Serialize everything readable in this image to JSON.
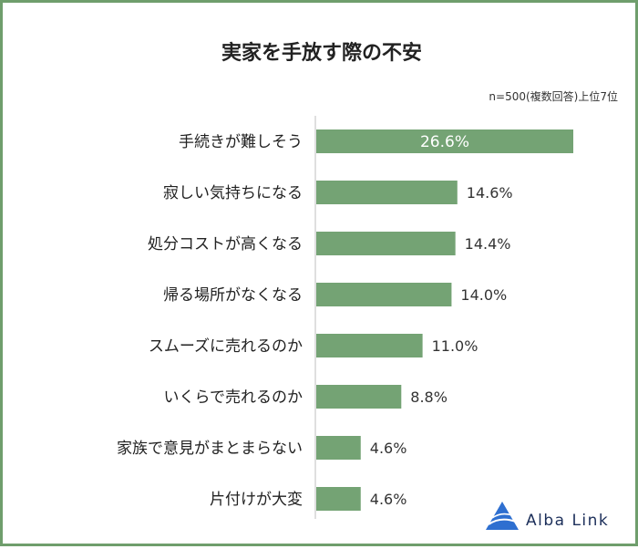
{
  "chart_data": {
    "type": "bar",
    "orientation": "horizontal",
    "title": "実家を手放す際の不安",
    "note": "n=500(複数回答)上位7位",
    "categories": [
      "手続きが難しそう",
      "寂しい気持ちになる",
      "処分コストが高くなる",
      "帰る場所がなくなる",
      "スムーズに売れるのか",
      "いくらで売れるのか",
      "家族で意見がまとまらない",
      "片付けが大変"
    ],
    "values": [
      26.6,
      14.6,
      14.4,
      14.0,
      11.0,
      8.8,
      4.6,
      4.6
    ],
    "value_labels": [
      "26.6%",
      "14.6%",
      "14.4%",
      "14.0%",
      "11.0%",
      "8.8%",
      "4.6%",
      "4.6%"
    ],
    "xlim": [
      0,
      30
    ],
    "grid": false,
    "bar_color": "#74a374",
    "frame_color": "#6f9e6c"
  },
  "brand": {
    "name": "Alba Link",
    "logo_icon": "triangle-wave-logo-icon"
  }
}
